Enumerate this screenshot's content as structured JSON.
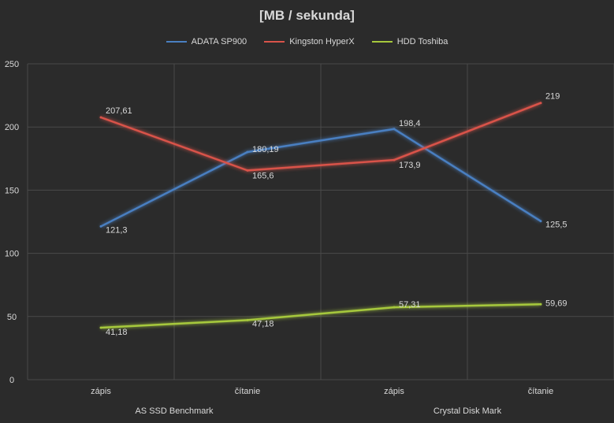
{
  "chart_data": {
    "type": "line",
    "title": "[MB / sekunda]",
    "categories": [
      "zápis",
      "čítanie",
      "zápis",
      "čítanie"
    ],
    "groups": [
      {
        "label": "AS SSD Benchmark",
        "span": [
          0,
          1
        ]
      },
      {
        "label": "Crystal Disk Mark",
        "span": [
          2,
          3
        ]
      }
    ],
    "ylim": [
      0,
      250
    ],
    "yticks": [
      0,
      50,
      100,
      150,
      200,
      250
    ],
    "grid": true,
    "legend_position": "top",
    "series": [
      {
        "name": "ADATA SP900",
        "color": "#4a7fc1",
        "values": [
          121.3,
          180.19,
          198.4,
          125.5
        ],
        "labels": [
          "121,3",
          "180,19",
          "198,4",
          "125,5"
        ]
      },
      {
        "name": "Kingston HyperX",
        "color": "#d9534a",
        "values": [
          207.61,
          165.6,
          173.9,
          219
        ],
        "labels": [
          "207,61",
          "165,6",
          "173,9",
          "219"
        ]
      },
      {
        "name": "HDD Toshiba",
        "color": "#a6c83c",
        "values": [
          41.18,
          47.18,
          57.31,
          59.69
        ],
        "labels": [
          "41,18",
          "47,18",
          "57,31",
          "59,69"
        ]
      }
    ]
  }
}
